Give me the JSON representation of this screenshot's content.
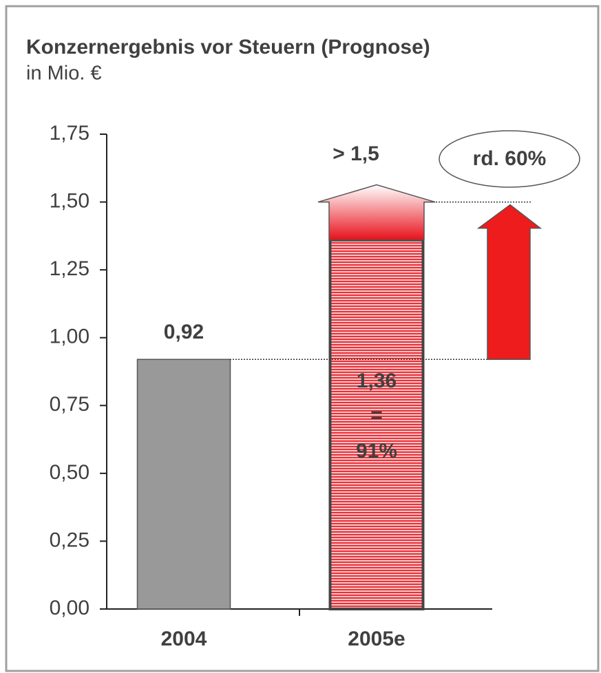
{
  "chart_data": {
    "type": "bar",
    "title": "Konzernergebnis vor Steuern (Prognose)",
    "subtitle": "in Mio. €",
    "categories": [
      "2004",
      "2005e"
    ],
    "values": [
      0.92,
      1.36
    ],
    "value_labels": [
      "0,92",
      "1,36"
    ],
    "colors": [
      "#999999",
      "#f08080"
    ],
    "inner_text": [
      "=",
      "91%"
    ],
    "forecast": {
      "text": "> 1,5",
      "value": 1.5
    },
    "growth_label": "rd. 60%",
    "ylim": [
      0,
      1.75
    ],
    "yticks": [
      {
        "value": 0,
        "label": "0,00"
      },
      {
        "value": 0.25,
        "label": "0,25"
      },
      {
        "value": 0.5,
        "label": "0,50"
      },
      {
        "value": 0.75,
        "label": "0,75"
      },
      {
        "value": 1,
        "label": "1,00"
      },
      {
        "value": 1.25,
        "label": "1,25"
      },
      {
        "value": 1.5,
        "label": "1,50"
      },
      {
        "value": 1.75,
        "label": "1,75"
      }
    ]
  }
}
